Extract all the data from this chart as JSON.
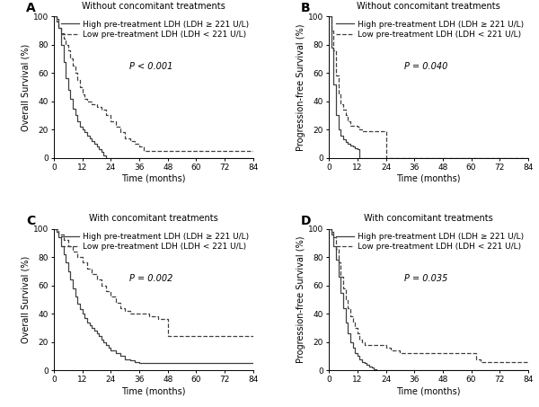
{
  "panels": [
    {
      "label": "A",
      "title": "Without concomitant treatments",
      "ylabel": "Overall Survival (%)",
      "xlabel": "Time (months)",
      "pvalue": "P < 0.001",
      "high_x": [
        0,
        1,
        2,
        3,
        4,
        5,
        6,
        7,
        8,
        9,
        10,
        11,
        12,
        13,
        14,
        15,
        16,
        17,
        18,
        19,
        20,
        21,
        22,
        23,
        24,
        84
      ],
      "high_y": [
        100,
        98,
        92,
        80,
        68,
        56,
        48,
        42,
        35,
        30,
        26,
        22,
        20,
        18,
        16,
        14,
        12,
        10,
        8,
        6,
        4,
        2,
        0,
        0,
        0,
        0
      ],
      "low_x": [
        0,
        1,
        2,
        3,
        4,
        5,
        6,
        7,
        8,
        9,
        10,
        11,
        12,
        13,
        14,
        16,
        18,
        20,
        22,
        24,
        26,
        28,
        30,
        32,
        34,
        36,
        38,
        84
      ],
      "low_y": [
        100,
        96,
        92,
        88,
        84,
        80,
        76,
        70,
        65,
        60,
        55,
        50,
        45,
        42,
        40,
        38,
        36,
        34,
        30,
        26,
        22,
        18,
        14,
        12,
        10,
        8,
        5,
        5
      ]
    },
    {
      "label": "B",
      "title": "Without concomitant treatments",
      "ylabel": "Progression-free Survival (%)",
      "xlabel": "Time (months)",
      "pvalue": "P = 0.040",
      "high_x": [
        0,
        1,
        2,
        3,
        4,
        5,
        6,
        7,
        8,
        9,
        10,
        11,
        12,
        13,
        84
      ],
      "high_y": [
        100,
        78,
        52,
        30,
        20,
        16,
        13,
        11,
        10,
        9,
        8,
        7,
        6,
        0,
        0
      ],
      "low_x": [
        0,
        1,
        2,
        3,
        4,
        5,
        6,
        7,
        8,
        9,
        10,
        11,
        12,
        13,
        14,
        15,
        16,
        18,
        20,
        22,
        24,
        84
      ],
      "low_y": [
        100,
        90,
        76,
        58,
        45,
        38,
        34,
        30,
        26,
        23,
        23,
        23,
        22,
        20,
        19,
        19,
        19,
        19,
        19,
        19,
        0,
        0
      ]
    },
    {
      "label": "C",
      "title": "With concomitant treatments",
      "ylabel": "Overall Survival (%)",
      "xlabel": "Time (months)",
      "pvalue": "P = 0.002",
      "high_x": [
        0,
        1,
        2,
        3,
        4,
        5,
        6,
        7,
        8,
        9,
        10,
        11,
        12,
        13,
        14,
        15,
        16,
        17,
        18,
        19,
        20,
        21,
        22,
        23,
        24,
        26,
        28,
        30,
        32,
        34,
        36,
        38,
        40,
        42,
        44,
        46,
        48,
        84
      ],
      "high_y": [
        100,
        98,
        94,
        88,
        82,
        76,
        70,
        64,
        58,
        52,
        47,
        43,
        40,
        37,
        34,
        32,
        30,
        28,
        26,
        24,
        22,
        20,
        18,
        16,
        14,
        12,
        10,
        8,
        7,
        6,
        5,
        5,
        5,
        5,
        5,
        5,
        5,
        5
      ],
      "low_x": [
        0,
        2,
        4,
        6,
        8,
        10,
        12,
        14,
        16,
        18,
        20,
        22,
        24,
        26,
        28,
        30,
        32,
        36,
        40,
        44,
        48,
        52,
        54,
        56,
        60,
        72,
        84
      ],
      "low_y": [
        100,
        96,
        92,
        88,
        84,
        80,
        76,
        72,
        68,
        64,
        60,
        56,
        52,
        48,
        44,
        42,
        40,
        40,
        38,
        36,
        24,
        24,
        24,
        24,
        24,
        24,
        24
      ]
    },
    {
      "label": "D",
      "title": "With concomitant treatments",
      "ylabel": "Progression-free Survival (%)",
      "xlabel": "Time (months)",
      "pvalue": "P = 0.035",
      "high_x": [
        0,
        1,
        2,
        3,
        4,
        5,
        6,
        7,
        8,
        9,
        10,
        11,
        12,
        13,
        14,
        15,
        16,
        17,
        18,
        19,
        20,
        21,
        22,
        23,
        24,
        84
      ],
      "high_y": [
        100,
        96,
        88,
        78,
        66,
        55,
        44,
        34,
        26,
        20,
        16,
        12,
        10,
        8,
        6,
        5,
        4,
        3,
        2,
        1,
        0,
        0,
        0,
        0,
        0,
        0
      ],
      "low_x": [
        0,
        1,
        2,
        3,
        4,
        5,
        6,
        7,
        8,
        9,
        10,
        11,
        12,
        13,
        14,
        15,
        16,
        18,
        20,
        22,
        24,
        26,
        28,
        30,
        36,
        48,
        60,
        62,
        64,
        72,
        84
      ],
      "low_y": [
        100,
        98,
        94,
        86,
        76,
        66,
        58,
        50,
        44,
        38,
        34,
        30,
        26,
        22,
        20,
        18,
        18,
        18,
        18,
        18,
        16,
        14,
        14,
        12,
        12,
        12,
        12,
        8,
        6,
        6,
        6
      ]
    }
  ],
  "high_label": "High pre-treatment LDH (LDH ≥ 221 U/L)",
  "low_label": "Low pre-treatment LDH (LDH < 221 U/L)",
  "xlim": [
    0,
    84
  ],
  "ylim": [
    0,
    100
  ],
  "xticks": [
    0,
    12,
    24,
    36,
    48,
    60,
    72,
    84
  ],
  "yticks": [
    0,
    20,
    40,
    60,
    80,
    100
  ],
  "bg_color": "#ffffff",
  "line_color": "#404040",
  "title_fontsize": 7.0,
  "label_fontsize": 7.0,
  "tick_fontsize": 6.5,
  "legend_fontsize": 6.5,
  "pvalue_fontsize": 7.0,
  "panel_label_fontsize": 10
}
